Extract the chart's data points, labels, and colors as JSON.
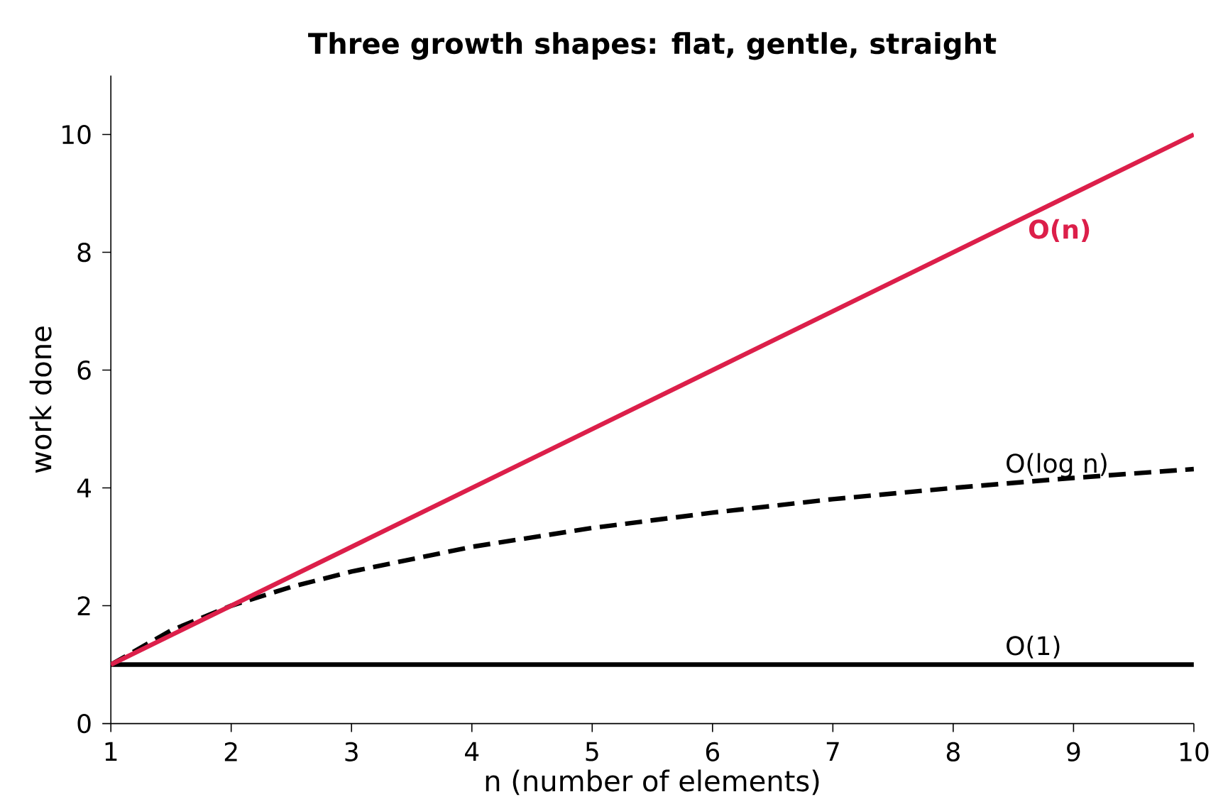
{
  "chart_data": {
    "type": "line",
    "title": "Three growth shapes: flat, gentle, straight",
    "xlabel": "n  (number of elements)",
    "ylabel": "work done",
    "series": [
      {
        "name": "O(1)",
        "color": "#000000",
        "line_style": "solid",
        "x": [
          1,
          10
        ],
        "values": [
          1,
          1
        ]
      },
      {
        "name": "O(log n)",
        "color": "#000000",
        "line_style": "dashed",
        "x": [
          1,
          1.5,
          2,
          2.5,
          3,
          4,
          5,
          6,
          7,
          8,
          9,
          10
        ],
        "values": [
          1,
          1.58,
          2,
          2.32,
          2.58,
          3,
          3.32,
          3.58,
          3.81,
          4,
          4.17,
          4.32
        ]
      },
      {
        "name": "O(n)",
        "color": "#dc1f4a",
        "line_style": "solid",
        "x": [
          1,
          10
        ],
        "values": [
          1,
          10
        ]
      }
    ],
    "xlim": [
      1,
      10
    ],
    "ylim": [
      0,
      11
    ],
    "xticks": [
      1,
      2,
      3,
      4,
      5,
      6,
      7,
      8,
      9,
      10
    ],
    "yticks": [
      0,
      2,
      4,
      6,
      8,
      10
    ],
    "grid": false,
    "legend": false,
    "marker": "none"
  }
}
